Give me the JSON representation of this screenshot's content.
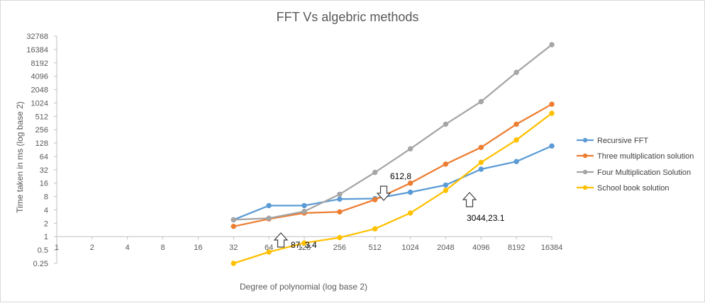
{
  "chart_data": {
    "type": "line",
    "title": "FFT Vs algebric methods",
    "xlabel": "Degree  of polynomial (log base 2)",
    "ylabel": "Time taken in ms (log base 2)",
    "x_scale": "log2",
    "y_scale": "log2",
    "x_ticks": [
      "1",
      "2",
      "4",
      "8",
      "16",
      "32",
      "64",
      "128",
      "256",
      "512",
      "1024",
      "2048",
      "4096",
      "8192",
      "16384"
    ],
    "y_ticks": [
      "0.25",
      "0.5",
      "1",
      "2",
      "4",
      "8",
      "16",
      "32",
      "64",
      "128",
      "256",
      "512",
      "1024",
      "2048",
      "4096",
      "8192",
      "16384",
      "32768"
    ],
    "xlim": [
      1,
      16384
    ],
    "ylim": [
      0.25,
      32768
    ],
    "grid": false,
    "legend_position": "right",
    "categories": [
      32,
      64,
      128,
      256,
      512,
      1024,
      2048,
      4096,
      8192,
      16384
    ],
    "series": [
      {
        "name": "Recursive FFT",
        "color": "#5b9bd5",
        "values": [
          2.4,
          5,
          5,
          7,
          7.2,
          10,
          14.5,
          33,
          49,
          110
        ]
      },
      {
        "name": "Three multiplication solution",
        "color": "#ed7d31",
        "values": [
          1.7,
          2.5,
          3.4,
          3.6,
          6.8,
          16,
          43,
          102,
          340,
          960
        ]
      },
      {
        "name": "Four Multiplication Solution",
        "color": "#a5a5a5",
        "values": [
          2.4,
          2.6,
          3.7,
          9,
          28,
          95,
          340,
          1100,
          5000,
          21000
        ]
      },
      {
        "name": "School book solution",
        "color": "#ffc000",
        "values": [
          0.25,
          0.45,
          0.72,
          0.95,
          1.5,
          3.4,
          11,
          47,
          150,
          600
        ]
      }
    ],
    "annotations": [
      {
        "text": "87, 3.4",
        "arrow": "up",
        "x": 87,
        "y": 3.4
      },
      {
        "text": "612,8",
        "arrow": "down",
        "x": 612,
        "y": 8
      },
      {
        "text": "3044,23.1",
        "arrow": "up",
        "x": 3044,
        "y": 23.1
      }
    ]
  }
}
